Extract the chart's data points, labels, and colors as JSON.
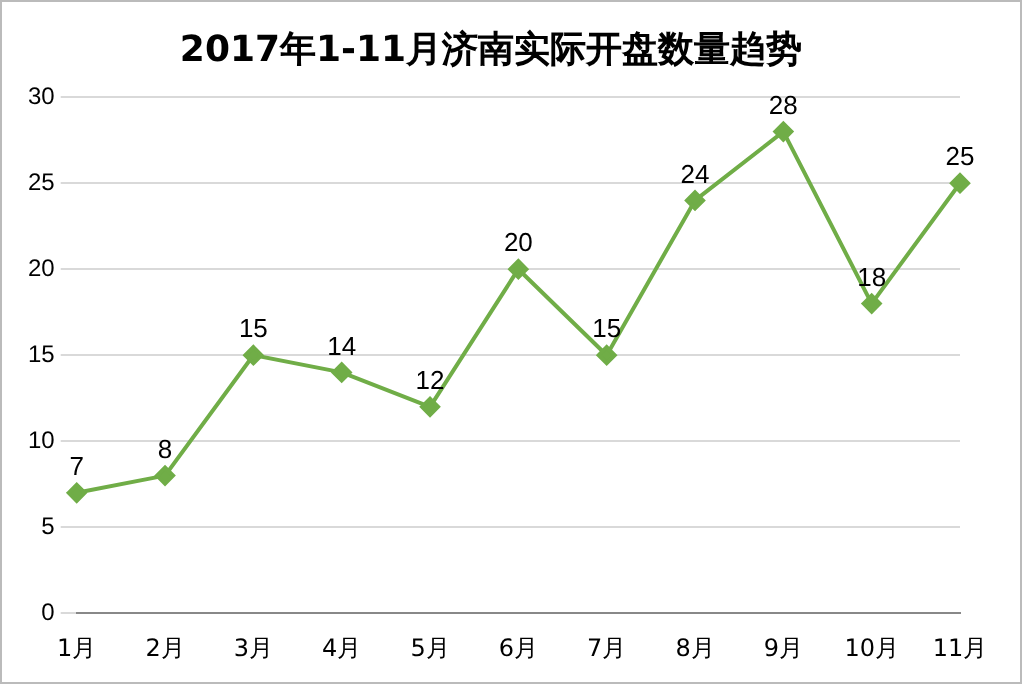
{
  "chart_data": {
    "type": "line",
    "title": "2017年1-11月济南实际开盘数量趋势",
    "categories": [
      "1月",
      "2月",
      "3月",
      "4月",
      "5月",
      "6月",
      "7月",
      "8月",
      "9月",
      "10月",
      "11月"
    ],
    "series": [
      {
        "color": "#70ad47",
        "values": [
          7,
          8,
          15,
          14,
          12,
          20,
          15,
          24,
          28,
          18,
          25
        ]
      }
    ],
    "ylim": [
      0,
      30
    ],
    "yticks": [
      0,
      5,
      10,
      15,
      20,
      25,
      30
    ],
    "grid": "y",
    "legend": false,
    "marker": "diamond",
    "line_style": "solid",
    "data_labels": true
  }
}
